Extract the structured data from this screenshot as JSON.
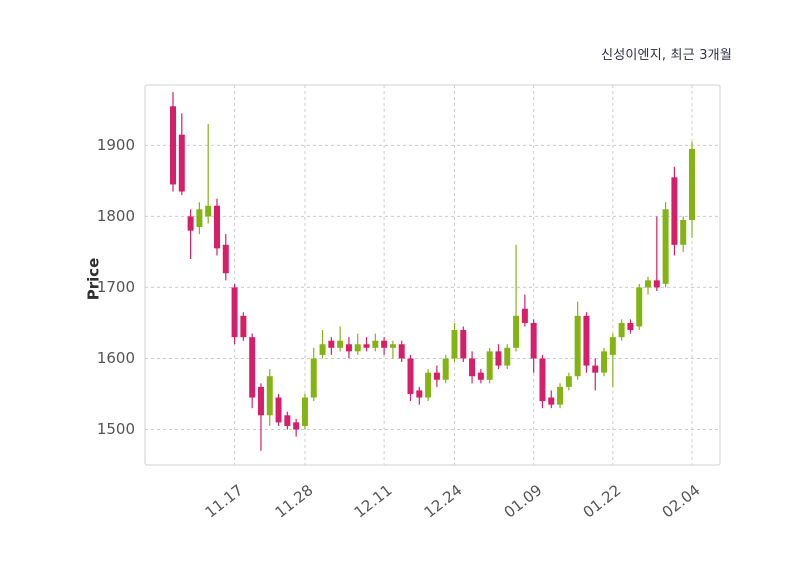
{
  "chart": {
    "title": "신성이엔지, 최근 3개월",
    "ylabel": "Price"
  },
  "chart_data": {
    "type": "candlestick",
    "title": "신성이엔지, 최근 3개월",
    "ylabel": "Price",
    "ylim": [
      1450,
      1985
    ],
    "yticks": [
      1500,
      1600,
      1700,
      1800,
      1900
    ],
    "xticks": [
      {
        "label": "11.17",
        "index": 7
      },
      {
        "label": "11.28",
        "index": 15
      },
      {
        "label": "12.11",
        "index": 24
      },
      {
        "label": "12.24",
        "index": 32
      },
      {
        "label": "01.09",
        "index": 41
      },
      {
        "label": "01.22",
        "index": 50
      },
      {
        "label": "02.04",
        "index": 59
      }
    ],
    "grid": true,
    "colors": {
      "up": "#84b414",
      "down": "#d61f69",
      "grid": "#cccccc",
      "border": "#d9d9d9"
    },
    "candles_format": [
      "open",
      "high",
      "low",
      "close"
    ],
    "candles": [
      [
        1955,
        1975,
        1835,
        1845
      ],
      [
        1915,
        1945,
        1830,
        1835
      ],
      [
        1800,
        1810,
        1740,
        1780
      ],
      [
        1785,
        1820,
        1775,
        1810
      ],
      [
        1800,
        1930,
        1790,
        1815
      ],
      [
        1815,
        1825,
        1745,
        1755
      ],
      [
        1760,
        1775,
        1710,
        1720
      ],
      [
        1700,
        1705,
        1620,
        1630
      ],
      [
        1660,
        1665,
        1625,
        1630
      ],
      [
        1630,
        1635,
        1530,
        1545
      ],
      [
        1560,
        1565,
        1470,
        1520
      ],
      [
        1520,
        1585,
        1505,
        1575
      ],
      [
        1545,
        1550,
        1505,
        1510
      ],
      [
        1520,
        1525,
        1500,
        1505
      ],
      [
        1510,
        1515,
        1490,
        1500
      ],
      [
        1505,
        1550,
        1500,
        1545
      ],
      [
        1545,
        1615,
        1540,
        1600
      ],
      [
        1605,
        1640,
        1600,
        1620
      ],
      [
        1625,
        1630,
        1605,
        1615
      ],
      [
        1615,
        1645,
        1610,
        1625
      ],
      [
        1620,
        1630,
        1600,
        1610
      ],
      [
        1610,
        1635,
        1605,
        1620
      ],
      [
        1620,
        1630,
        1610,
        1615
      ],
      [
        1615,
        1635,
        1610,
        1625
      ],
      [
        1625,
        1630,
        1605,
        1615
      ],
      [
        1615,
        1625,
        1600,
        1620
      ],
      [
        1620,
        1625,
        1595,
        1600
      ],
      [
        1600,
        1605,
        1540,
        1550
      ],
      [
        1555,
        1560,
        1535,
        1545
      ],
      [
        1545,
        1585,
        1540,
        1580
      ],
      [
        1580,
        1590,
        1560,
        1570
      ],
      [
        1570,
        1605,
        1565,
        1600
      ],
      [
        1600,
        1650,
        1595,
        1640
      ],
      [
        1640,
        1645,
        1595,
        1600
      ],
      [
        1600,
        1610,
        1565,
        1575
      ],
      [
        1580,
        1585,
        1565,
        1570
      ],
      [
        1570,
        1615,
        1565,
        1610
      ],
      [
        1610,
        1620,
        1585,
        1590
      ],
      [
        1590,
        1620,
        1585,
        1615
      ],
      [
        1615,
        1760,
        1610,
        1660
      ],
      [
        1670,
        1690,
        1645,
        1650
      ],
      [
        1650,
        1655,
        1580,
        1600
      ],
      [
        1600,
        1605,
        1530,
        1540
      ],
      [
        1545,
        1555,
        1530,
        1535
      ],
      [
        1535,
        1565,
        1530,
        1560
      ],
      [
        1560,
        1580,
        1555,
        1575
      ],
      [
        1575,
        1680,
        1570,
        1660
      ],
      [
        1660,
        1665,
        1580,
        1590
      ],
      [
        1590,
        1600,
        1555,
        1580
      ],
      [
        1580,
        1615,
        1575,
        1610
      ],
      [
        1605,
        1635,
        1560,
        1630
      ],
      [
        1630,
        1655,
        1625,
        1650
      ],
      [
        1650,
        1655,
        1635,
        1640
      ],
      [
        1645,
        1705,
        1640,
        1700
      ],
      [
        1700,
        1715,
        1690,
        1710
      ],
      [
        1710,
        1800,
        1695,
        1700
      ],
      [
        1705,
        1820,
        1700,
        1810
      ],
      [
        1855,
        1870,
        1745,
        1760
      ],
      [
        1760,
        1800,
        1750,
        1795
      ],
      [
        1795,
        1905,
        1770,
        1895
      ]
    ]
  }
}
